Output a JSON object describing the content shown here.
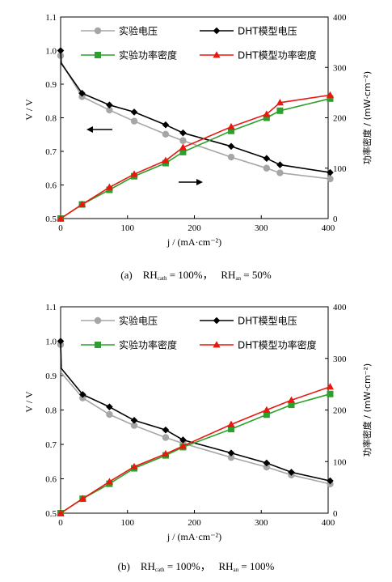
{
  "chart_data": [
    {
      "type": "line",
      "caption": {
        "label": "(a)",
        "rh_cath_name": "RH",
        "rh_cath_sub": "cath",
        "rh_cath_value": "= 100%，",
        "rh_an_name": "RH",
        "rh_an_sub": "an",
        "rh_an_value": "= 50%"
      },
      "xlabel": "j / (mA·cm⁻²)",
      "ylabel_left": "V / V",
      "ylabel_right": "功率密度 / (mW·cm⁻²)",
      "xlim": [
        0,
        400
      ],
      "xticks": [
        0,
        100,
        200,
        300,
        400
      ],
      "ylim_left": [
        0.5,
        1.1
      ],
      "yticks_left": [
        0.5,
        0.6,
        0.7,
        0.8,
        0.9,
        1.0,
        1.1
      ],
      "ylim_right": [
        0,
        400
      ],
      "yticks_right": [
        0,
        100,
        200,
        300,
        400
      ],
      "legend": "top, two columns",
      "series": [
        {
          "name": "实验电压",
          "axis": "left",
          "color": "#a6a6a6",
          "marker": "circle",
          "x": [
            0,
            1,
            32,
            73,
            110,
            157,
            183,
            255,
            308,
            328,
            403
          ],
          "y": [
            0.985,
            0.965,
            0.863,
            0.823,
            0.79,
            0.751,
            0.732,
            0.683,
            0.65,
            0.636,
            0.618
          ]
        },
        {
          "name": "DHT模型电压",
          "axis": "left",
          "color": "#000000",
          "marker": "diamond",
          "x": [
            0,
            1,
            32,
            73,
            110,
            157,
            183,
            255,
            308,
            328,
            403
          ],
          "y": [
            1.0,
            0.962,
            0.873,
            0.838,
            0.817,
            0.779,
            0.755,
            0.715,
            0.679,
            0.66,
            0.637
          ]
        },
        {
          "name": "实验功率密度",
          "axis": "right",
          "color": "#2ca02c",
          "marker": "square",
          "x": [
            0,
            32,
            73,
            110,
            157,
            183,
            255,
            308,
            328,
            403
          ],
          "y": [
            0,
            28,
            57,
            84,
            110,
            132,
            174,
            200,
            214,
            238
          ]
        },
        {
          "name": "DHT模型功率密度",
          "axis": "right",
          "color": "#e8170f",
          "marker": "triangle",
          "x": [
            0,
            32,
            73,
            110,
            157,
            183,
            255,
            308,
            328,
            403
          ],
          "y": [
            0,
            28,
            62,
            88,
            115,
            141,
            182,
            207,
            230,
            245
          ]
        }
      ]
    },
    {
      "type": "line",
      "caption": {
        "label": "(b)",
        "rh_cath_name": "RH",
        "rh_cath_sub": "cath",
        "rh_cath_value": "= 100%，",
        "rh_an_name": "RH",
        "rh_an_sub": "an",
        "rh_an_value": "= 100%"
      },
      "xlabel": "j / (mA·cm⁻²)",
      "ylabel_left": "V / V",
      "ylabel_right": "功率密度 / (mW·cm⁻²)",
      "xlim": [
        0,
        400
      ],
      "xticks": [
        0,
        100,
        200,
        300,
        400
      ],
      "ylim_left": [
        0.5,
        1.1
      ],
      "yticks_left": [
        0.5,
        0.6,
        0.7,
        0.8,
        0.9,
        1.0,
        1.1
      ],
      "ylim_right": [
        0,
        400
      ],
      "yticks_right": [
        0,
        100,
        200,
        300,
        400
      ],
      "legend": "top, two columns",
      "series": [
        {
          "name": "实验电压",
          "axis": "left",
          "color": "#a6a6a6",
          "marker": "circle",
          "x": [
            0,
            1,
            33,
            73,
            110,
            157,
            183,
            255,
            308,
            345,
            403
          ],
          "y": [
            0.99,
            0.908,
            0.835,
            0.787,
            0.755,
            0.72,
            0.703,
            0.662,
            0.634,
            0.611,
            0.585
          ]
        },
        {
          "name": "DHT模型电压",
          "axis": "left",
          "color": "#000000",
          "marker": "diamond",
          "x": [
            0,
            1,
            33,
            73,
            110,
            157,
            183,
            255,
            308,
            345,
            403
          ],
          "y": [
            1.0,
            0.921,
            0.845,
            0.809,
            0.77,
            0.742,
            0.713,
            0.675,
            0.646,
            0.619,
            0.594
          ]
        },
        {
          "name": "实验功率密度",
          "axis": "right",
          "color": "#2ca02c",
          "marker": "square",
          "x": [
            0,
            33,
            73,
            110,
            157,
            183,
            255,
            308,
            345,
            403
          ],
          "y": [
            0,
            28,
            57,
            87,
            112,
            128,
            163,
            191,
            210,
            231
          ]
        },
        {
          "name": "DHT模型功率密度",
          "axis": "right",
          "color": "#e8170f",
          "marker": "triangle",
          "x": [
            0,
            33,
            73,
            110,
            157,
            183,
            255,
            308,
            345,
            403
          ],
          "y": [
            0,
            28,
            61,
            90,
            115,
            130,
            172,
            200,
            219,
            245
          ]
        }
      ]
    }
  ]
}
